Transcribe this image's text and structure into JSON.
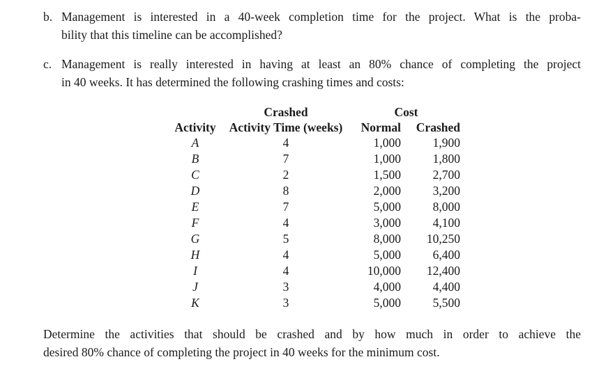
{
  "page": {
    "background": "#ffffff",
    "text_color": "#1b1b1b"
  },
  "problems": [
    {
      "label": "b.",
      "lines": [
        "Management is interested in a 40-week completion time for the project. What is the proba-",
        "bility that this timeline can be accomplished?"
      ]
    },
    {
      "label": "c.",
      "lines": [
        "Management is really interested in having at least an 80% chance of completing the project",
        "in 40 weeks. It has determined the following crashing times and costs:"
      ]
    }
  ],
  "crash_table": {
    "group_headers": {
      "crashed": "Crashed",
      "cost": "Cost"
    },
    "columns": [
      "Activity",
      "Activity Time (weeks)",
      "Normal",
      "Crashed"
    ],
    "rows": [
      {
        "activity": "A",
        "crashed_time_weeks": "4",
        "normal_cost": "1,000",
        "crashed_cost": "1,900"
      },
      {
        "activity": "B",
        "crashed_time_weeks": "7",
        "normal_cost": "1,000",
        "crashed_cost": "1,800"
      },
      {
        "activity": "C",
        "crashed_time_weeks": "2",
        "normal_cost": "1,500",
        "crashed_cost": "2,700"
      },
      {
        "activity": "D",
        "crashed_time_weeks": "8",
        "normal_cost": "2,000",
        "crashed_cost": "3,200"
      },
      {
        "activity": "E",
        "crashed_time_weeks": "7",
        "normal_cost": "5,000",
        "crashed_cost": "8,000"
      },
      {
        "activity": "F",
        "crashed_time_weeks": "4",
        "normal_cost": "3,000",
        "crashed_cost": "4,100"
      },
      {
        "activity": "G",
        "crashed_time_weeks": "5",
        "normal_cost": "8,000",
        "crashed_cost": "10,250"
      },
      {
        "activity": "H",
        "crashed_time_weeks": "4",
        "normal_cost": "5,000",
        "crashed_cost": "6,400"
      },
      {
        "activity": "I",
        "crashed_time_weeks": "4",
        "normal_cost": "10,000",
        "crashed_cost": "12,400"
      },
      {
        "activity": "J",
        "crashed_time_weeks": "3",
        "normal_cost": "4,000",
        "crashed_cost": "4,400"
      },
      {
        "activity": "K",
        "crashed_time_weeks": "3",
        "normal_cost": "5,000",
        "crashed_cost": "5,500"
      }
    ]
  },
  "closing": {
    "lines": [
      "Determine the activities that should be crashed and by how much in order to achieve the",
      "desired 80% chance of completing the project in 40 weeks for the minimum cost."
    ]
  }
}
